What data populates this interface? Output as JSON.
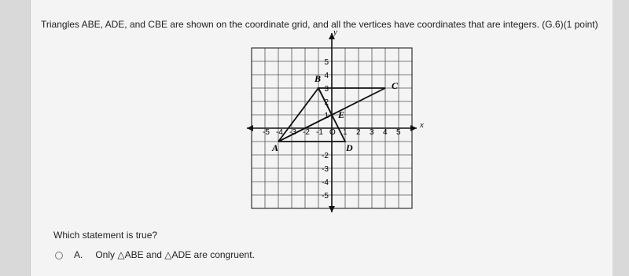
{
  "question": "Triangles ABE, ADE, and CBE are shown on the coordinate grid, and all the vertices have coordinates that are integers. (G.6)(1 point)",
  "graph": {
    "x_axis_label": "x",
    "y_axis_label": "y",
    "x_tick_labels": [
      "-5",
      "-4",
      "-3",
      "-2",
      "-1",
      "O",
      "1",
      "2",
      "3",
      "4",
      "5"
    ],
    "y_tick_labels": [
      "5",
      "4",
      "3",
      "2",
      "1",
      "-2",
      "-3",
      "-4",
      "-5"
    ],
    "points": [
      "A",
      "B",
      "C",
      "D",
      "E"
    ]
  },
  "prompt": "Which statement is true?",
  "choices": [
    {
      "letter": "A.",
      "text": "Only △ABE and △ADE are congruent."
    }
  ]
}
